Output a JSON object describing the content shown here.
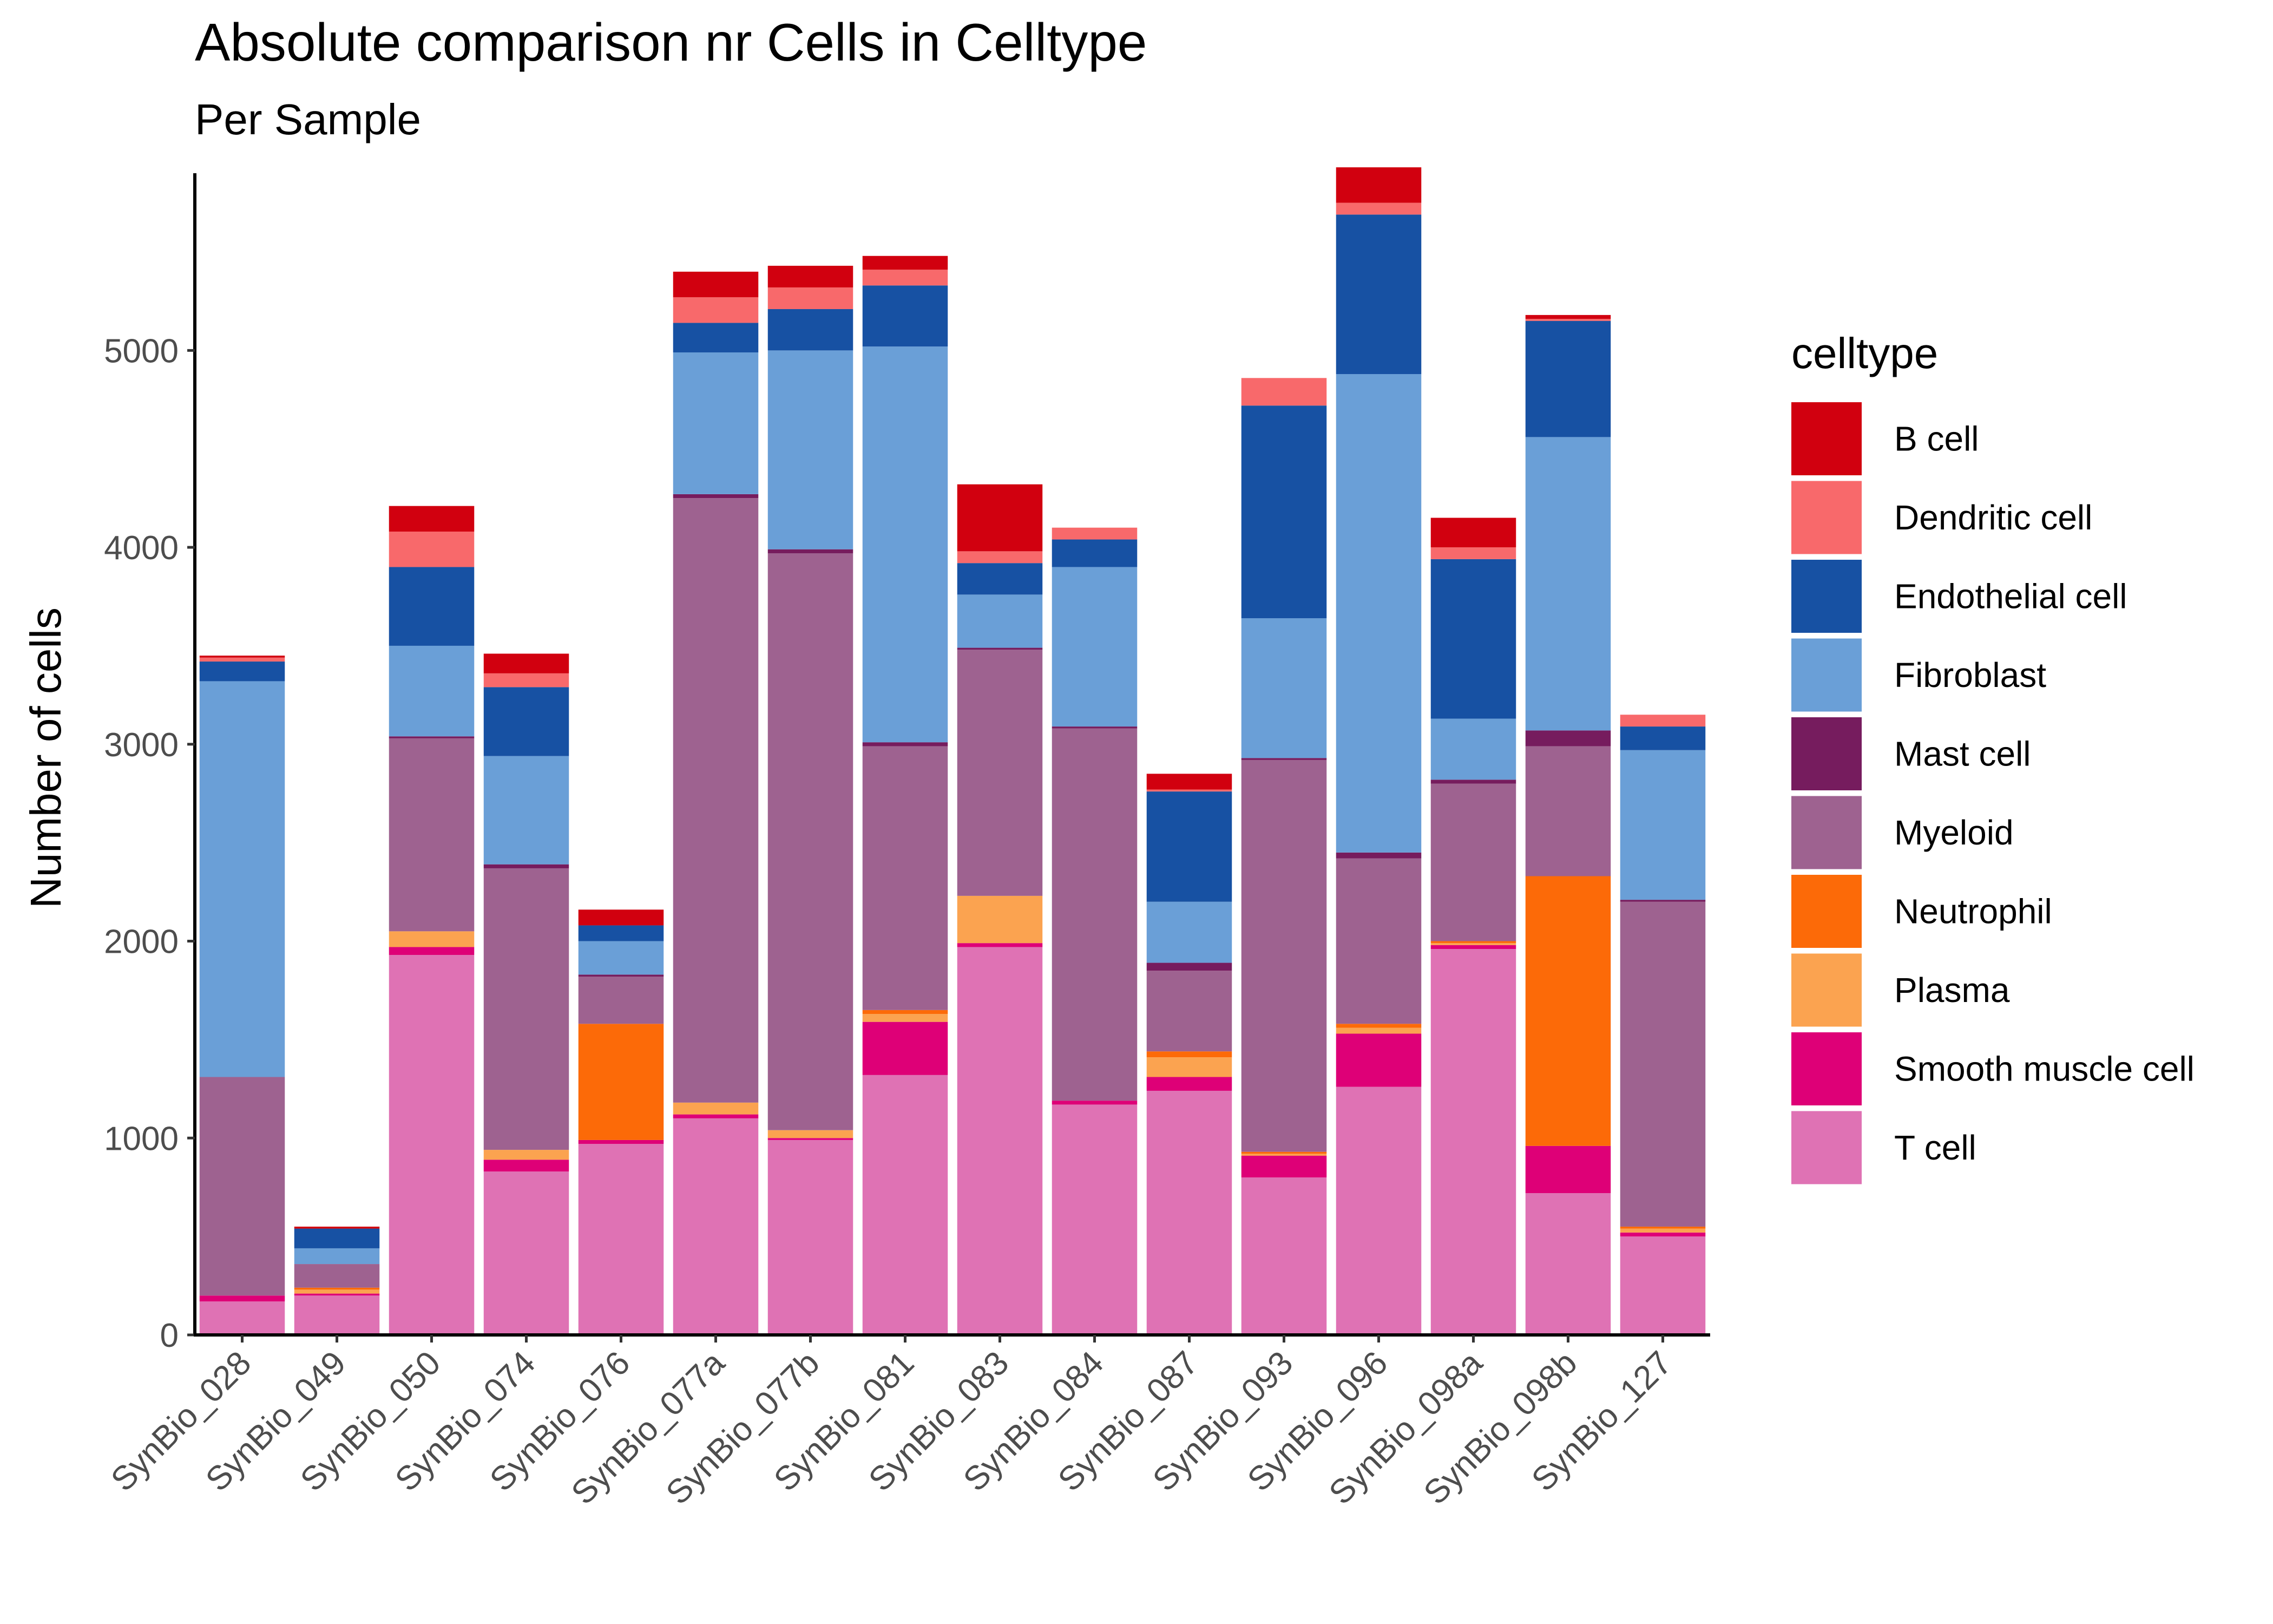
{
  "chart_data": {
    "type": "bar",
    "stacked": true,
    "title": "Absolute comparison nr Cells in Celltype",
    "subtitle": "Per Sample",
    "xlabel": "",
    "ylabel": "Number of cells",
    "ylim": [
      0,
      5900
    ],
    "yticks": [
      0,
      1000,
      2000,
      3000,
      4000,
      5000
    ],
    "grid": false,
    "legend": {
      "title": "celltype",
      "position": "right"
    },
    "categories": [
      "SynBio_028",
      "SynBio_049",
      "SynBio_050",
      "SynBio_074",
      "SynBio_076",
      "SynBio_077a",
      "SynBio_077b",
      "SynBio_081",
      "SynBio_083",
      "SynBio_084",
      "SynBio_087",
      "SynBio_093",
      "SynBio_096",
      "SynBio_098a",
      "SynBio_098b",
      "SynBio_127"
    ],
    "series": [
      {
        "name": "T cell",
        "color": "#DF72B4",
        "values": [
          170,
          200,
          1930,
          830,
          970,
          1100,
          990,
          1320,
          1970,
          1170,
          1240,
          800,
          1260,
          1960,
          720,
          500
        ]
      },
      {
        "name": "Smooth muscle cell",
        "color": "#DE0077",
        "values": [
          30,
          10,
          40,
          60,
          20,
          20,
          10,
          270,
          20,
          20,
          70,
          110,
          270,
          20,
          240,
          20
        ]
      },
      {
        "name": "Plasma",
        "color": "#FBA350",
        "values": [
          0,
          20,
          80,
          50,
          0,
          60,
          40,
          40,
          240,
          0,
          100,
          10,
          30,
          10,
          0,
          20
        ]
      },
      {
        "name": "Neutrophil",
        "color": "#FC6A08",
        "values": [
          0,
          10,
          0,
          0,
          590,
          0,
          0,
          20,
          0,
          0,
          30,
          10,
          20,
          10,
          1370,
          10
        ]
      },
      {
        "name": "Myeloid",
        "color": "#9E6290",
        "values": [
          1110,
          120,
          980,
          1430,
          240,
          3070,
          2930,
          1340,
          1250,
          1890,
          410,
          1990,
          840,
          800,
          660,
          1650
        ]
      },
      {
        "name": "Mast cell",
        "color": "#761C5E",
        "values": [
          0,
          0,
          10,
          20,
          10,
          20,
          20,
          20,
          10,
          10,
          40,
          10,
          30,
          20,
          80,
          10
        ]
      },
      {
        "name": "Fibroblast",
        "color": "#6A9FD7",
        "values": [
          2010,
          80,
          460,
          550,
          170,
          720,
          1010,
          2010,
          270,
          810,
          310,
          710,
          2430,
          310,
          1490,
          760
        ]
      },
      {
        "name": "Endothelial cell",
        "color": "#1751A3",
        "values": [
          100,
          100,
          400,
          350,
          80,
          150,
          210,
          310,
          160,
          140,
          560,
          1080,
          810,
          810,
          590,
          120
        ]
      },
      {
        "name": "Dendritic cell",
        "color": "#F8696B",
        "values": [
          20,
          0,
          180,
          70,
          0,
          130,
          110,
          80,
          60,
          60,
          10,
          140,
          60,
          60,
          10,
          60
        ]
      },
      {
        "name": "B cell",
        "color": "#D1000F",
        "values": [
          10,
          10,
          130,
          100,
          80,
          130,
          110,
          70,
          340,
          0,
          80,
          0,
          180,
          150,
          20,
          0
        ]
      }
    ],
    "legend_order": [
      "B cell",
      "Dendritic cell",
      "Endothelial cell",
      "Fibroblast",
      "Mast cell",
      "Myeloid",
      "Neutrophil",
      "Plasma",
      "Smooth muscle cell",
      "T cell"
    ]
  }
}
